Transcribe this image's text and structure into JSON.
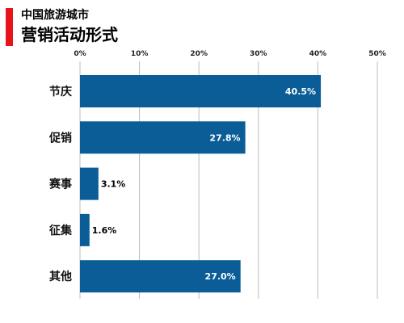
{
  "header": {
    "supertitle": "中国旅游城市",
    "title": "营销活动形式"
  },
  "colors": {
    "accent": "#e8141b",
    "bar": "#0a5d96",
    "grid": "#bcbcbc"
  },
  "chart_data": {
    "type": "bar",
    "orientation": "horizontal",
    "title": "营销活动形式",
    "categories": [
      "节庆",
      "促销",
      "赛事",
      "征集",
      "其他"
    ],
    "values": [
      40.5,
      27.8,
      3.1,
      1.6,
      27.0
    ],
    "data_labels": [
      "40.5%",
      "27.8%",
      "3.1%",
      "1.6%",
      "27.0%"
    ],
    "xlim": [
      0,
      50
    ],
    "ticks": [
      0,
      10,
      20,
      30,
      40,
      50
    ],
    "tick_labels": [
      "0%",
      "10%",
      "20%",
      "30%",
      "40%",
      "50%"
    ],
    "xaxis_position": "top",
    "grid": true,
    "legend": "none"
  }
}
